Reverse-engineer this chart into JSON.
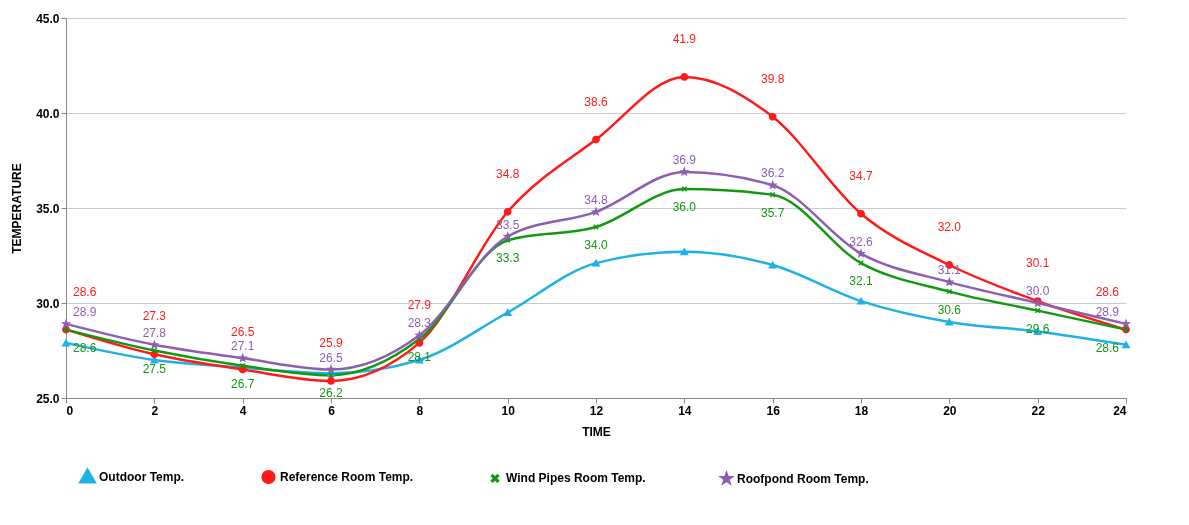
{
  "chart_data": {
    "type": "line",
    "xlabel": "TIME",
    "ylabel": "TEMPERATURE",
    "x": [
      0,
      2,
      4,
      6,
      8,
      10,
      12,
      14,
      16,
      18,
      20,
      22,
      24
    ],
    "series": [
      {
        "name": "Outdoor Temp.",
        "color": "#1fb0e6",
        "marker": "triangle",
        "values": [
          27.9,
          27.0,
          26.6,
          26.3,
          27.0,
          29.5,
          32.1,
          32.7,
          32.0,
          30.1,
          29.0,
          28.5,
          27.8
        ]
      },
      {
        "name": "Reference Room Temp.",
        "color": "#ff1a1a",
        "marker": "circle",
        "values": [
          28.6,
          27.3,
          26.5,
          25.9,
          27.9,
          34.8,
          38.6,
          41.9,
          39.8,
          34.7,
          32.0,
          30.1,
          28.6
        ],
        "value_labels": [
          "28.6",
          "27.3",
          "26.5",
          "25.9",
          "27.9",
          "34.8",
          "38.6",
          "41.9",
          "39.8",
          "34.7",
          "32.0",
          "30.1",
          "28.6"
        ]
      },
      {
        "name": "Wind Pipes Room Temp.",
        "color": "#129912",
        "marker": "cross",
        "values": [
          28.6,
          27.5,
          26.7,
          26.2,
          28.1,
          33.3,
          34.0,
          36.0,
          35.7,
          32.1,
          30.6,
          29.6,
          28.6
        ],
        "value_labels": [
          "28.6",
          "27.5",
          "26.7",
          "26.2",
          "28.1",
          "33.3",
          "34.0",
          "36.0",
          "35.7",
          "32.1",
          "30.6",
          "29.6",
          "28.6"
        ]
      },
      {
        "name": "Roofpond Room Temp.",
        "color": "#8e5fb0",
        "marker": "star",
        "values": [
          28.9,
          27.8,
          27.1,
          26.5,
          28.3,
          33.5,
          34.8,
          36.9,
          36.2,
          32.6,
          31.1,
          30.0,
          28.9
        ],
        "value_labels": [
          "28.9",
          "27.8",
          "27.1",
          "26.5",
          "28.3",
          "33.5",
          "34.8",
          "36.9",
          "36.2",
          "32.6",
          "31.1",
          "30.0",
          "28.9"
        ]
      }
    ],
    "xlim": [
      0,
      24
    ],
    "xticks": [
      0,
      2,
      4,
      6,
      8,
      10,
      12,
      14,
      16,
      18,
      20,
      22,
      24
    ],
    "ylim": [
      25,
      45
    ],
    "yticks": [
      {
        "value": 25,
        "label": "25.0"
      },
      {
        "value": 30,
        "label": "30.0"
      },
      {
        "value": 35,
        "label": "35.0"
      },
      {
        "value": 40,
        "label": "40.0"
      },
      {
        "value": 45,
        "label": "45.0"
      }
    ],
    "grid": "y",
    "legend": "bottom",
    "line_style": "solid"
  }
}
